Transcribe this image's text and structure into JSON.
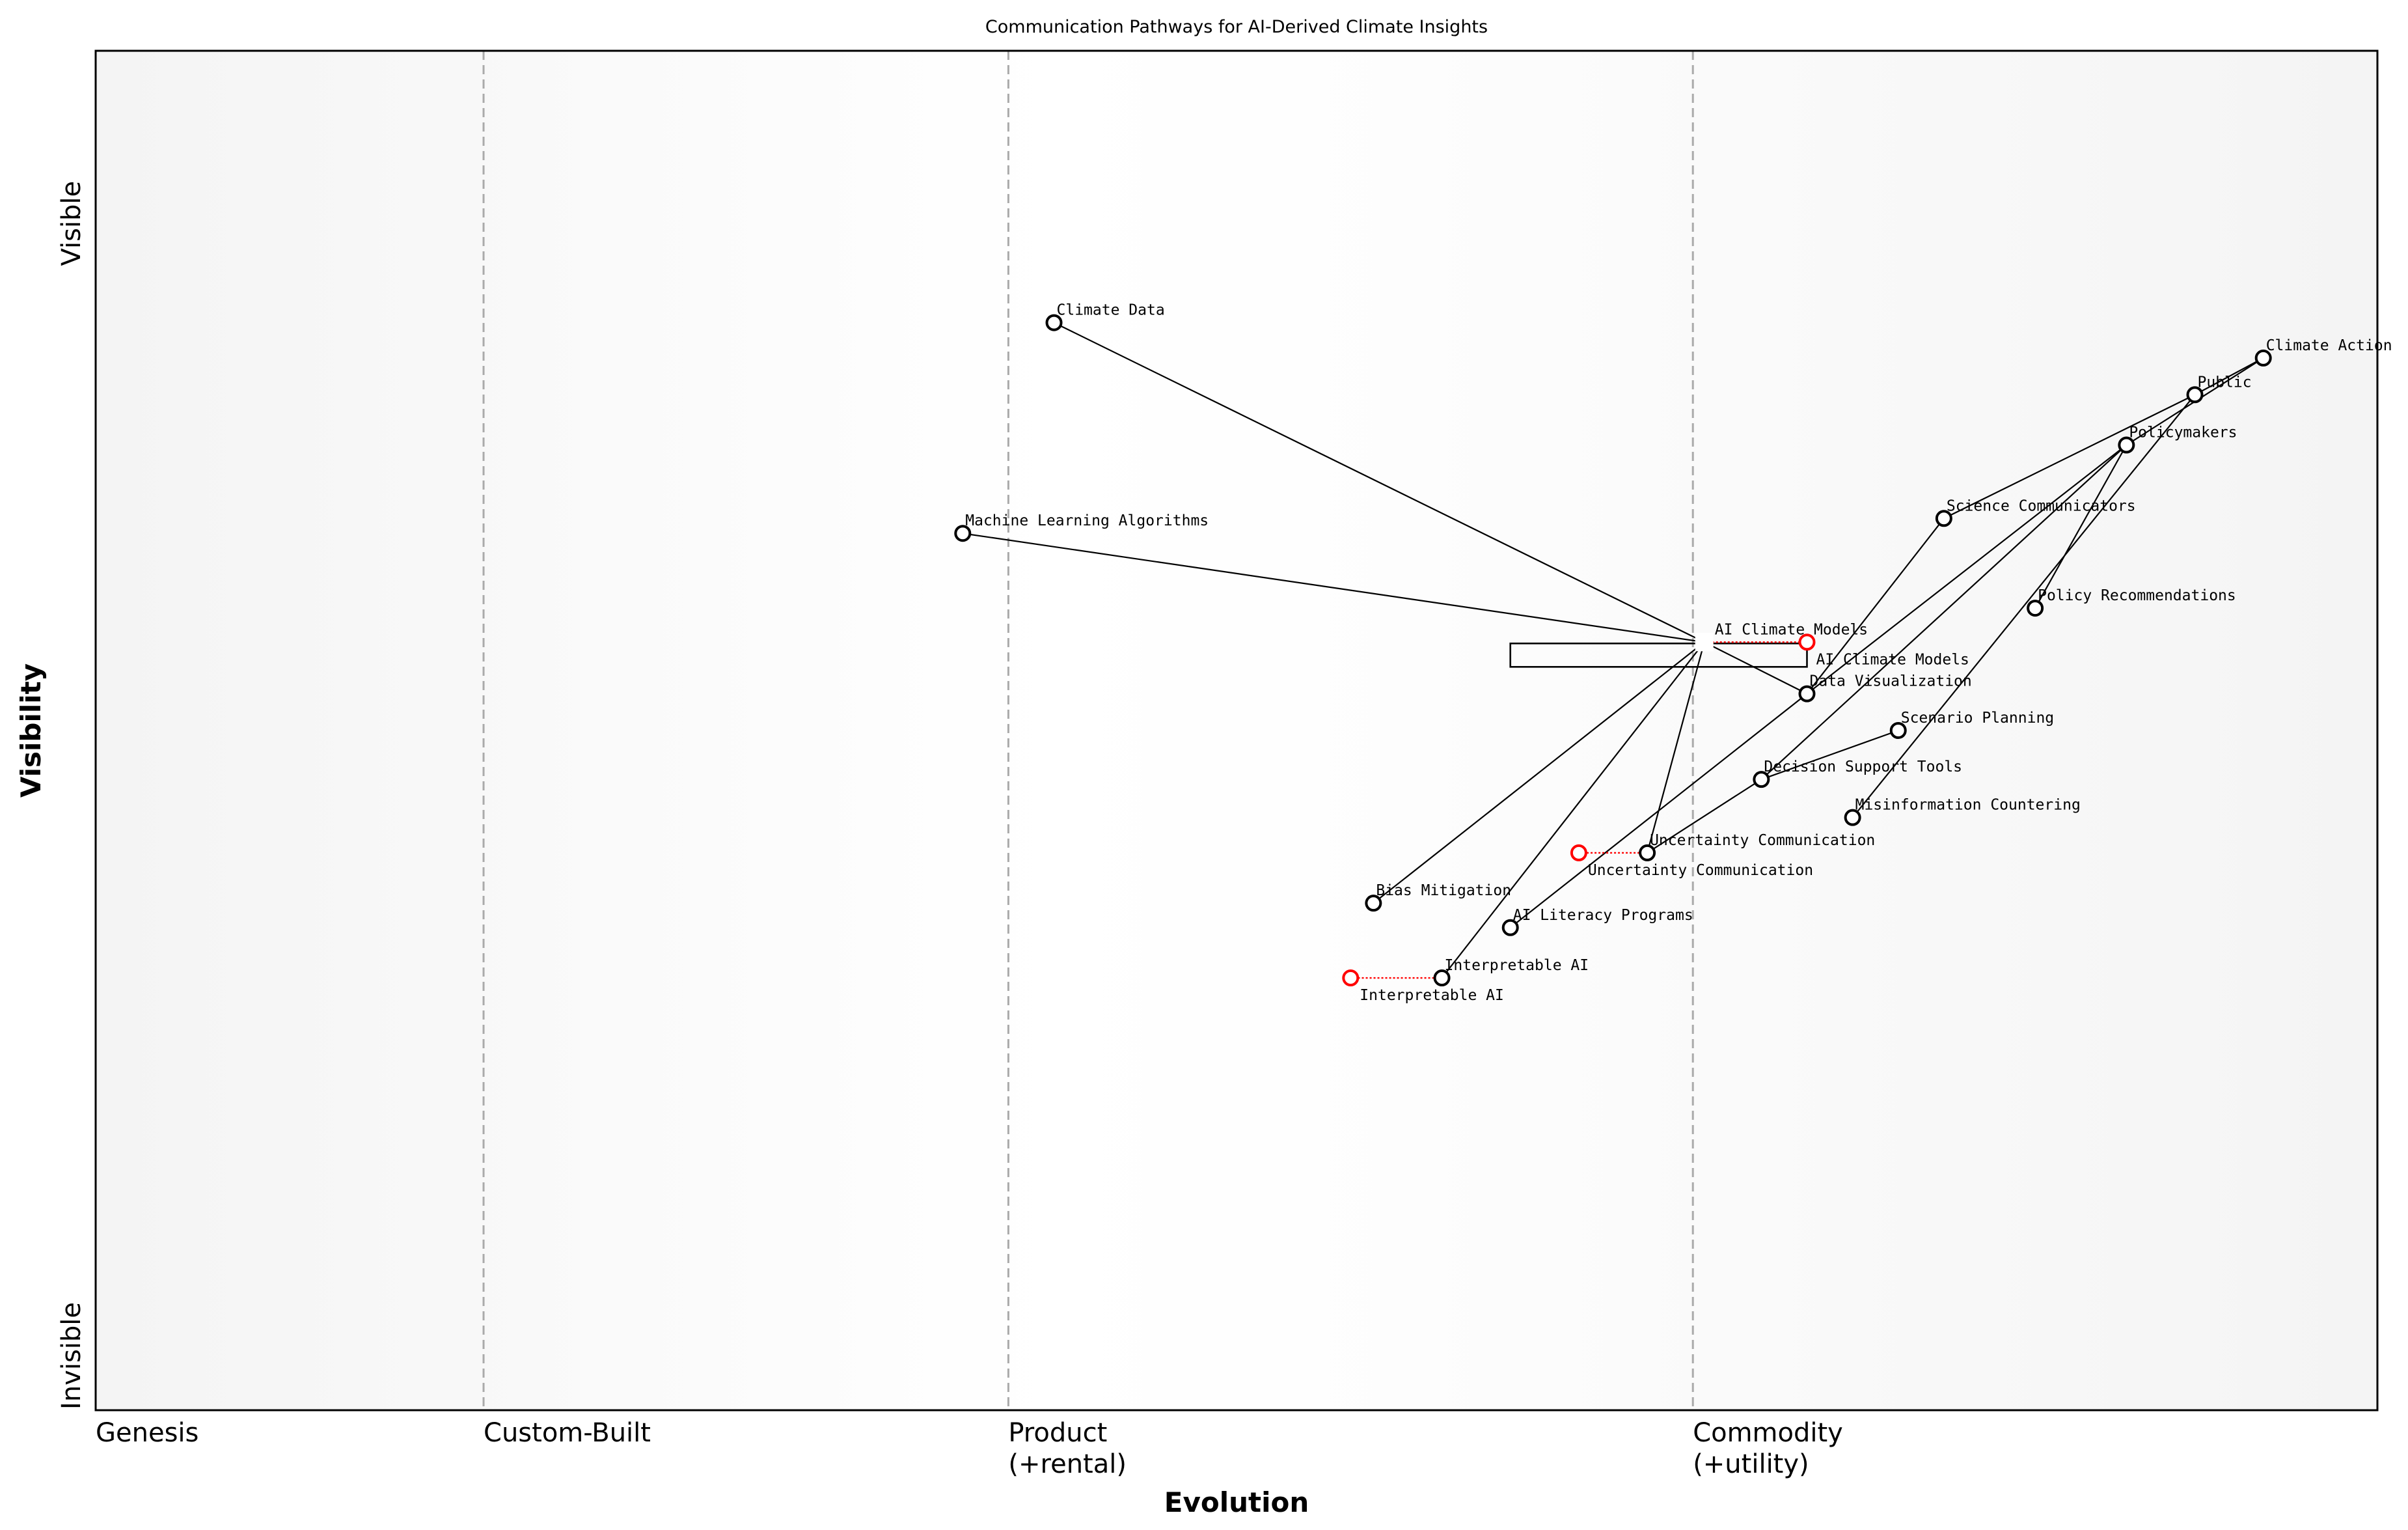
{
  "chart_data": {
    "type": "wardley-map",
    "title": "Communication Pathways for AI-Derived Climate Insights",
    "xlabel": "Evolution",
    "ylabel": "Visibility",
    "xlim": [
      0,
      1
    ],
    "ylim": [
      0,
      1
    ],
    "grid": false,
    "background": "light grey at the edges, fading to white in the middle",
    "x_ticks": [
      {
        "value": 0.0,
        "lines": [
          "Genesis"
        ]
      },
      {
        "value": 0.17,
        "lines": [
          "Custom-Built"
        ]
      },
      {
        "value": 0.4,
        "lines": [
          "Product",
          "(+rental)"
        ]
      },
      {
        "value": 0.7,
        "lines": [
          "Commodity",
          "(+utility)"
        ]
      }
    ],
    "stage_lines": [
      0.17,
      0.4,
      0.7
    ],
    "y_ticks": [
      {
        "value": 0.04,
        "label": "Invisible"
      },
      {
        "value": 0.873,
        "label": "Visible"
      }
    ],
    "components": [
      {
        "name": "Climate Data",
        "evolution": 0.42,
        "visibility": 0.8
      },
      {
        "name": "Machine Learning Algorithms",
        "evolution": 0.38,
        "visibility": 0.645
      },
      {
        "name": "AI Climate Models",
        "evolution": 0.705,
        "visibility": 0.565,
        "marker": "square"
      },
      {
        "name": "Data Visualization",
        "evolution": 0.75,
        "visibility": 0.527
      },
      {
        "name": "Scenario Planning",
        "evolution": 0.79,
        "visibility": 0.5
      },
      {
        "name": "Decision Support Tools",
        "evolution": 0.73,
        "visibility": 0.464
      },
      {
        "name": "Misinformation Countering",
        "evolution": 0.77,
        "visibility": 0.436
      },
      {
        "name": "Uncertainty Communication",
        "evolution": 0.68,
        "visibility": 0.41
      },
      {
        "name": "Bias Mitigation",
        "evolution": 0.56,
        "visibility": 0.373
      },
      {
        "name": "AI Literacy Programs",
        "evolution": 0.62,
        "visibility": 0.355
      },
      {
        "name": "Interpretable AI",
        "evolution": 0.59,
        "visibility": 0.318
      },
      {
        "name": "Science Communicators",
        "evolution": 0.81,
        "visibility": 0.656
      },
      {
        "name": "Policy Recommendations",
        "evolution": 0.85,
        "visibility": 0.59
      },
      {
        "name": "Policymakers",
        "evolution": 0.89,
        "visibility": 0.71
      },
      {
        "name": "Public",
        "evolution": 0.92,
        "visibility": 0.747
      },
      {
        "name": "Climate Action",
        "evolution": 0.95,
        "visibility": 0.774
      }
    ],
    "links": [
      [
        "Climate Data",
        "AI Climate Models"
      ],
      [
        "Machine Learning Algorithms",
        "AI Climate Models"
      ],
      [
        "AI Climate Models",
        "Data Visualization"
      ],
      [
        "AI Climate Models",
        "Bias Mitigation"
      ],
      [
        "AI Climate Models",
        "Interpretable AI"
      ],
      [
        "AI Climate Models",
        "Uncertainty Communication"
      ],
      [
        "AI Literacy Programs",
        "Data Visualization"
      ],
      [
        "Data Visualization",
        "Science Communicators"
      ],
      [
        "Data Visualization",
        "Policymakers"
      ],
      [
        "Uncertainty Communication",
        "Decision Support Tools"
      ],
      [
        "Decision Support Tools",
        "Scenario Planning"
      ],
      [
        "Decision Support Tools",
        "Policymakers"
      ],
      [
        "Misinformation Countering",
        "Public"
      ],
      [
        "Policy Recommendations",
        "Policymakers"
      ],
      [
        "Science Communicators",
        "Public"
      ],
      [
        "Policymakers",
        "Climate Action"
      ],
      [
        "Public",
        "Climate Action"
      ]
    ],
    "evolutions": [
      {
        "name": "AI Climate Models",
        "to": 0.75
      },
      {
        "name": "Uncertainty Communication",
        "to": 0.65
      },
      {
        "name": "Interpretable AI",
        "to": 0.55
      }
    ],
    "pipelines": [
      {
        "component": "AI Climate Models",
        "start": 0.62,
        "end": 0.75
      }
    ],
    "colors": {
      "node": "#000000",
      "evolve": "#ff0000",
      "stage_line": "#aaaaaa",
      "background_edge": "#f4f4f4",
      "background_center": "#ffffff"
    }
  }
}
